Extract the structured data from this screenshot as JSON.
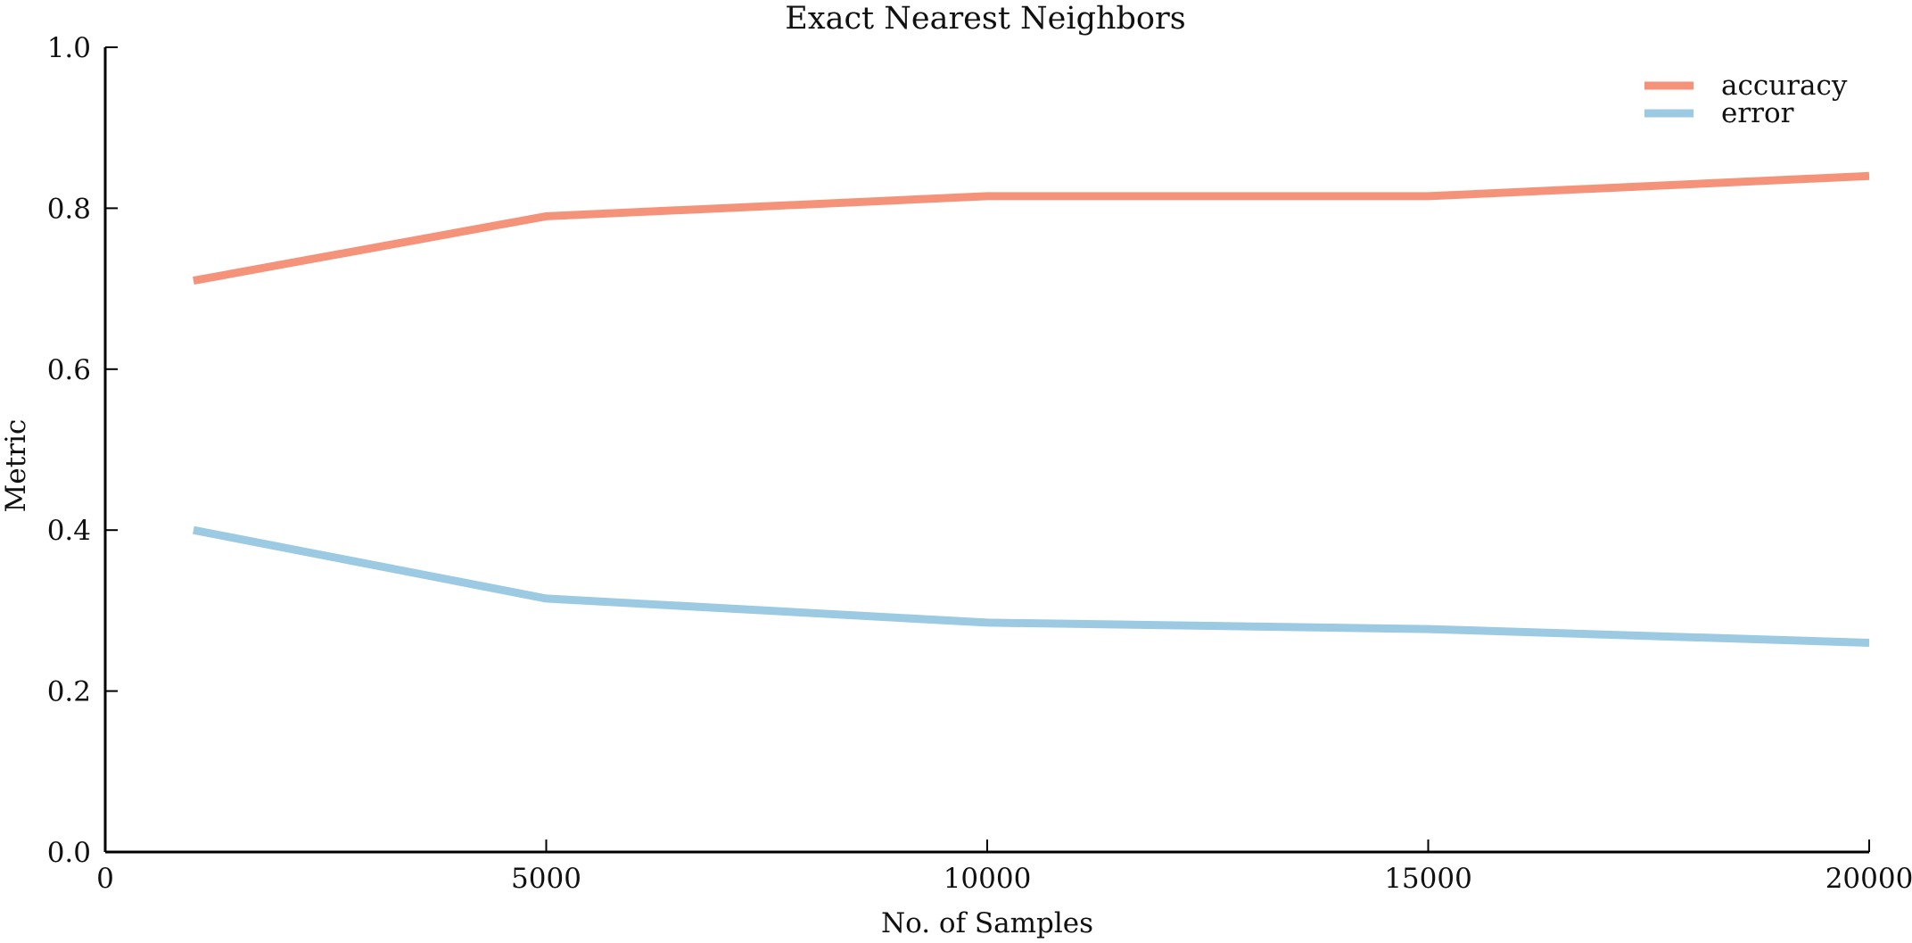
{
  "chart_data": {
    "type": "line",
    "title": "Exact Nearest Neighbors",
    "xlabel": "No. of Samples",
    "ylabel": "Metric",
    "xlim": [
      0,
      20000
    ],
    "ylim": [
      0.0,
      1.0
    ],
    "x_ticks": [
      0,
      5000,
      10000,
      15000,
      20000
    ],
    "x_tick_labels": [
      "0",
      "5000",
      "10000",
      "15000",
      "20000"
    ],
    "y_ticks": [
      0.0,
      0.2,
      0.4,
      0.6,
      0.8,
      1.0
    ],
    "y_tick_labels": [
      "0.0",
      "0.2",
      "0.4",
      "0.6",
      "0.8",
      "1.0"
    ],
    "x": [
      1000,
      5000,
      10000,
      15000,
      20000
    ],
    "series": [
      {
        "name": "accuracy",
        "color": "#f4937a",
        "values": [
          0.71,
          0.79,
          0.815,
          0.815,
          0.84
        ]
      },
      {
        "name": "error",
        "color": "#9ccae2",
        "values": [
          0.4,
          0.315,
          0.285,
          0.277,
          0.26
        ]
      }
    ],
    "grid": false,
    "legend_position": "top-right"
  }
}
